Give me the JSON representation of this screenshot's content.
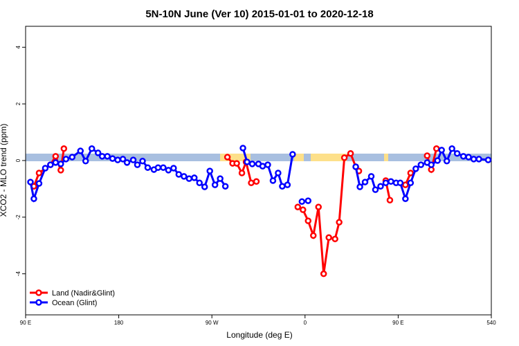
{
  "chart_data": {
    "type": "line",
    "title": "5N-10N June (Ver 10)   2015-01-01 to 2020-12-18",
    "x_label": "Longitude (deg E)",
    "y_label": "XCO2 - MLO trend (ppm)",
    "xlim": [
      90,
      540
    ],
    "ylim": [
      -5.45,
      4.74
    ],
    "xticks": [
      {
        "value": 90,
        "label": "90 E"
      },
      180,
      {
        "value": 270,
        "label": "90 W"
      },
      {
        "value": 360,
        "label": "0"
      },
      {
        "value": 450,
        "label": "90 E"
      },
      540
    ],
    "yticks": [
      -4,
      -2,
      0,
      2,
      4
    ],
    "legend": "bottom-left",
    "series": [
      {
        "name": "Land (Nadir&Glint)",
        "color": "#ff0000",
        "x": [
          98,
          103,
          114,
          119,
          124,
          127,
          null,
          285,
          290,
          294,
          299,
          303,
          308,
          313,
          null,
          353,
          358,
          363,
          368,
          373,
          378,
          383,
          389,
          393,
          398,
          404,
          409,
          412,
          null,
          438,
          442,
          null,
          457,
          462,
          null,
          478,
          482,
          487
        ],
        "values": [
          -0.91,
          -0.44,
          -0.15,
          0.15,
          -0.34,
          0.42,
          null,
          0.12,
          -0.1,
          -0.1,
          -0.44,
          -0.05,
          -0.79,
          -0.74,
          null,
          -1.64,
          -1.74,
          -2.13,
          -2.65,
          -1.64,
          -4.0,
          -2.72,
          -2.77,
          -2.18,
          0.1,
          0.25,
          -0.22,
          -0.37,
          null,
          -0.71,
          -1.4,
          null,
          -0.86,
          -0.44,
          null,
          0.17,
          -0.32,
          0.42
        ]
      },
      {
        "name": "Ocean (Glint)",
        "color": "#0000ff",
        "x": [
          94.7,
          98,
          103,
          109,
          114,
          119,
          124,
          129,
          135,
          143,
          148,
          154,
          160,
          164,
          169,
          174,
          179,
          184,
          188,
          194,
          198,
          203,
          208,
          214,
          218,
          223,
          228,
          233,
          238,
          243,
          248,
          253,
          258,
          263,
          268,
          273,
          278,
          283,
          null,
          300,
          304,
          309,
          315,
          319,
          324,
          329,
          334,
          338,
          343,
          348,
          null,
          357,
          363,
          null,
          409,
          413,
          418,
          424,
          428,
          433,
          438,
          443,
          448,
          452,
          457,
          462,
          467,
          472,
          478,
          482,
          488,
          492,
          497,
          502,
          507,
          513,
          518,
          523,
          528,
          537
        ],
        "values": [
          -0.76,
          -1.35,
          -0.81,
          -0.27,
          -0.15,
          -0.07,
          -0.12,
          0.05,
          0.12,
          0.34,
          -0.02,
          0.42,
          0.27,
          0.15,
          0.15,
          0.07,
          0.02,
          0.05,
          -0.07,
          0.02,
          -0.15,
          -0.02,
          -0.25,
          -0.32,
          -0.25,
          -0.25,
          -0.34,
          -0.27,
          -0.49,
          -0.56,
          -0.64,
          -0.61,
          -0.79,
          -0.93,
          -0.37,
          -0.86,
          -0.64,
          -0.91,
          null,
          0.44,
          -0.05,
          -0.12,
          -0.12,
          -0.2,
          -0.15,
          -0.71,
          -0.44,
          -0.91,
          -0.86,
          0.22,
          null,
          -1.45,
          -1.42,
          null,
          -0.22,
          -0.93,
          -0.76,
          -0.56,
          -1.03,
          -0.91,
          -0.79,
          -0.74,
          -0.79,
          -0.79,
          -1.35,
          -0.79,
          -0.29,
          -0.15,
          -0.07,
          -0.15,
          0.0,
          0.37,
          -0.02,
          0.42,
          0.25,
          0.15,
          0.12,
          0.05,
          0.05,
          0.02
        ]
      }
    ]
  }
}
